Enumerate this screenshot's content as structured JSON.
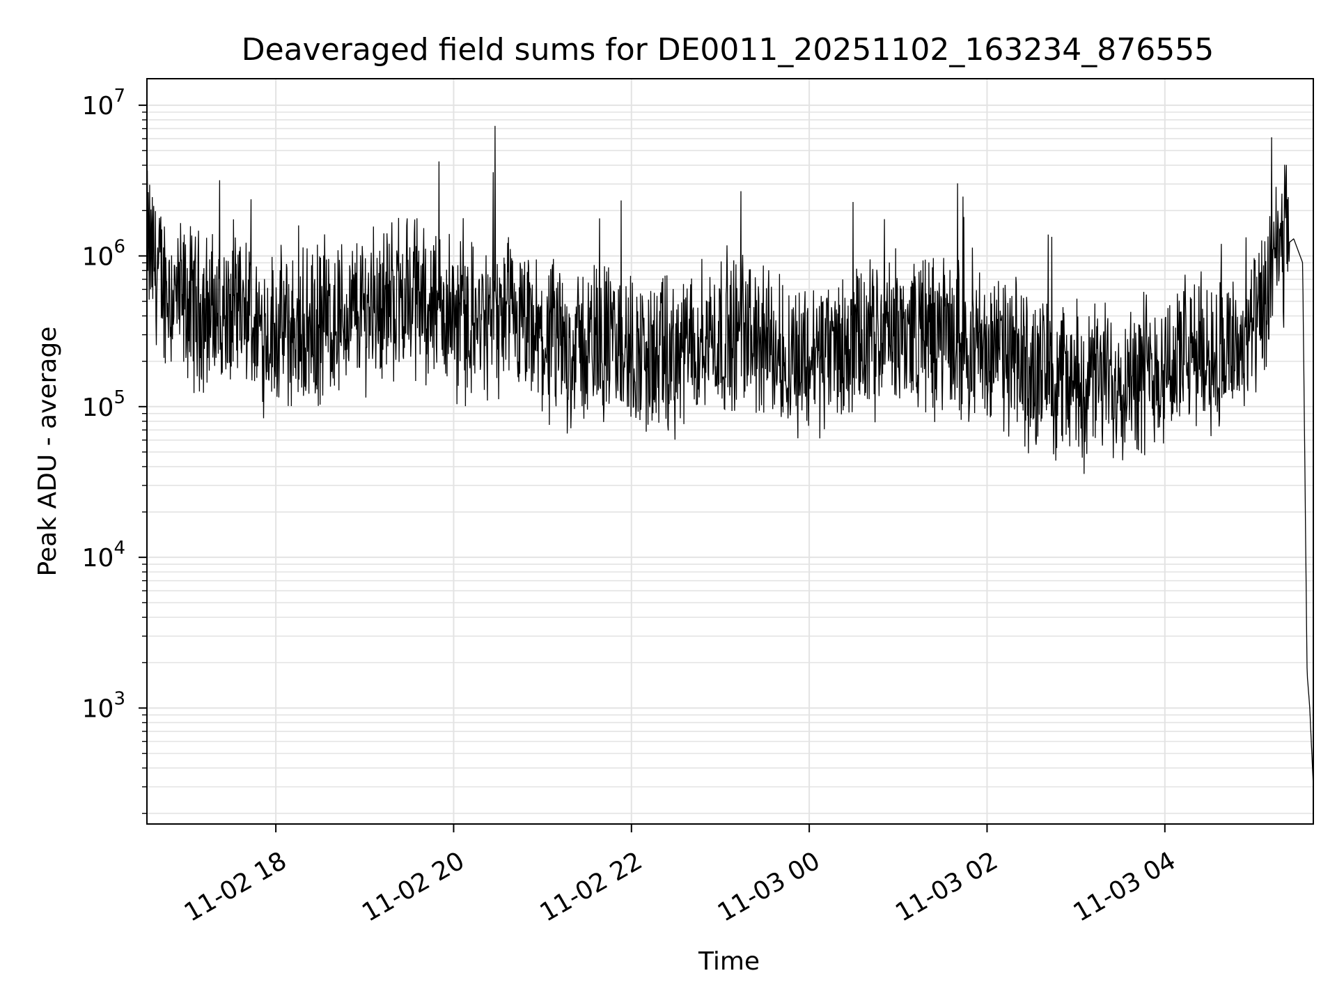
{
  "chart_data": {
    "type": "line",
    "title": "Deaveraged field sums for DE0011_20251102_163234_876555",
    "xlabel": "Time",
    "ylabel": "Peak ADU - average",
    "yscale": "log",
    "ylim": [
      170,
      15000000
    ],
    "xlim_hours": [
      16.55,
      5.67
    ],
    "grid": true,
    "line_color": "#000000",
    "x_ticks": [
      {
        "label": "11-02 18",
        "hour": 18
      },
      {
        "label": "11-02 20",
        "hour": 20
      },
      {
        "label": "11-02 22",
        "hour": 22
      },
      {
        "label": "11-03 00",
        "hour": 24
      },
      {
        "label": "11-03 02",
        "hour": 26
      },
      {
        "label": "11-03 04",
        "hour": 28
      }
    ],
    "y_ticks": [
      {
        "base": "10",
        "exp": "3",
        "value": 1000
      },
      {
        "base": "10",
        "exp": "4",
        "value": 10000
      },
      {
        "base": "10",
        "exp": "5",
        "value": 100000
      },
      {
        "base": "10",
        "exp": "6",
        "value": 1000000
      },
      {
        "base": "10",
        "exp": "7",
        "value": 10000000
      }
    ],
    "series": [
      {
        "name": "field sums",
        "x_hours": [
          16.55,
          16.7,
          16.9,
          17.1,
          17.3,
          17.5,
          17.7,
          17.9,
          18.1,
          18.3,
          18.5,
          18.7,
          18.9,
          19.1,
          19.3,
          19.5,
          19.7,
          19.9,
          20.1,
          20.3,
          20.5,
          20.7,
          20.9,
          21.1,
          21.3,
          21.5,
          21.7,
          21.9,
          22.1,
          22.3,
          22.5,
          22.7,
          22.9,
          23.1,
          23.3,
          23.5,
          23.7,
          23.9,
          24.1,
          24.3,
          24.5,
          24.7,
          24.9,
          25.1,
          25.3,
          25.5,
          25.7,
          25.9,
          26.1,
          26.3,
          26.5,
          26.7,
          26.9,
          27.1,
          27.3,
          27.5,
          27.7,
          27.9,
          28.1,
          28.3,
          28.5,
          28.7,
          28.9,
          29.1,
          29.3,
          29.45,
          29.55,
          29.6,
          29.63,
          29.67
        ],
        "values": [
          1200000,
          700000,
          500000,
          450000,
          420000,
          380000,
          350000,
          330000,
          320000,
          300000,
          340000,
          380000,
          420000,
          480000,
          520000,
          560000,
          500000,
          420000,
          380000,
          350000,
          360000,
          330000,
          280000,
          250000,
          240000,
          260000,
          280000,
          240000,
          220000,
          200000,
          210000,
          260000,
          300000,
          320000,
          300000,
          260000,
          230000,
          210000,
          220000,
          240000,
          250000,
          270000,
          300000,
          320000,
          310000,
          290000,
          270000,
          250000,
          230000,
          200000,
          180000,
          160000,
          150000,
          140000,
          150000,
          160000,
          170000,
          180000,
          200000,
          220000,
          230000,
          240000,
          260000,
          400000,
          1100000,
          1300000,
          900000,
          1700,
          1000,
          300
        ]
      }
    ]
  }
}
